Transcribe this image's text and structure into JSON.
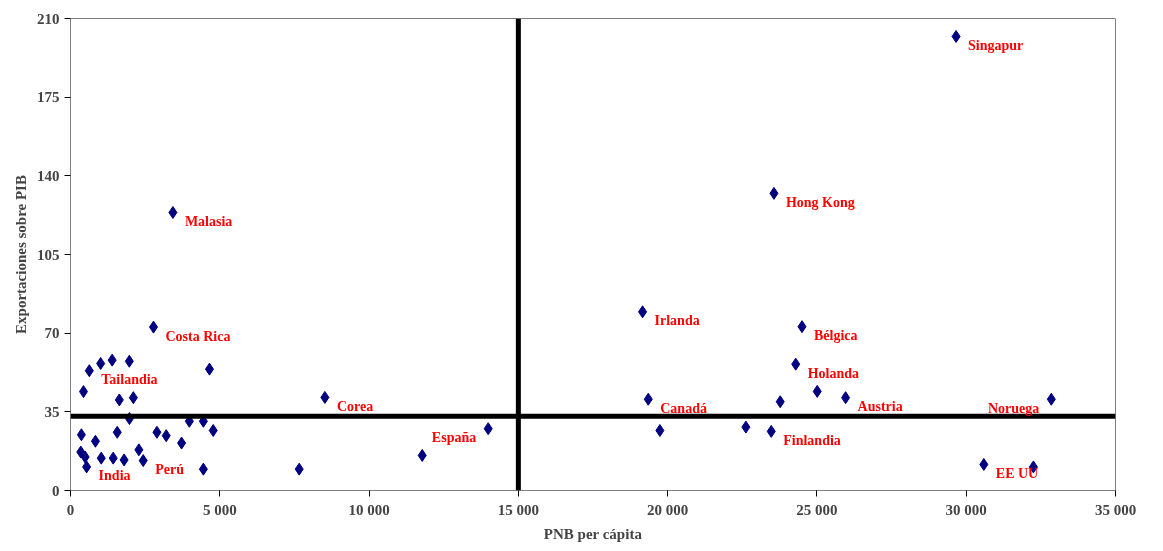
{
  "chart_data": {
    "type": "scatter",
    "xlabel": "PNB per cápita",
    "ylabel": "Exportaciones sobre PIB",
    "marker": "diamond",
    "grid": false,
    "xlim": [
      0,
      35000
    ],
    "ylim": [
      0,
      210
    ],
    "xticks": [
      0,
      {
        "value": 5000,
        "label": "5 000"
      },
      {
        "value": 10000,
        "label": "10 000"
      },
      {
        "value": 15000,
        "label": "15 000"
      },
      {
        "value": 20000,
        "label": "20 000"
      },
      {
        "value": 25000,
        "label": "25 000"
      },
      {
        "value": 30000,
        "label": "30 000"
      },
      {
        "value": 35000,
        "label": "35 000"
      }
    ],
    "yticks": [
      0,
      35,
      70,
      105,
      140,
      175,
      210
    ],
    "series": [
      {
        "color": "#000080",
        "x": [
          2780,
          630,
          1010,
          1395,
          1970,
          4655,
          435,
          1635,
          2105,
          8520,
          1975,
          3980,
          4450,
          365,
          835,
          1565,
          2895,
          3205,
          4780,
          3720,
          345,
          490,
          540,
          1030,
          1430,
          1795,
          2290,
          2435,
          4450,
          7660,
          11780,
          13990,
          19160,
          24500,
          24290,
          19350,
          23770,
          25010,
          25960,
          19740,
          22620,
          23470,
          32850,
          30590,
          32250,
          3430,
          23560,
          29660
        ],
        "values": [
          72.7,
          53.3,
          56.5,
          58,
          57.5,
          54,
          44,
          40.3,
          41.3,
          41.4,
          32,
          30.8,
          30.8,
          24.8,
          21.9,
          25.9,
          25.9,
          24.4,
          26.7,
          21.1,
          17.1,
          14.9,
          10.5,
          14.4,
          14.4,
          13.6,
          18.1,
          13.3,
          9.5,
          9.5,
          15.6,
          27.5,
          79.5,
          72.9,
          56.2,
          40.6,
          39.5,
          44.1,
          41.3,
          26.7,
          28.2,
          26.3,
          40.6,
          11.6,
          10.5,
          123.7,
          132.2,
          202
        ]
      }
    ],
    "ref_lines": [
      {
        "axis": "x",
        "value": 15000,
        "color": "#000000"
      },
      {
        "axis": "y",
        "value": 33,
        "color": "#000000"
      }
    ],
    "annotations": [
      {
        "text": "Malasia",
        "x": 3430,
        "y": 123.7
      },
      {
        "text": "Costa Rica",
        "x": 2780,
        "y": 72.7
      },
      {
        "text": "Tailandia",
        "x": 630,
        "y": 53.3
      },
      {
        "text": "Corea",
        "x": 8520,
        "y": 41.4
      },
      {
        "text": "Perú",
        "x": 2435,
        "y": 13.3
      },
      {
        "text": "India",
        "x": 540,
        "y": 10.5
      },
      {
        "text": "España",
        "x": 13990,
        "y": 27.5
      },
      {
        "text": "Singapur",
        "x": 29660,
        "y": 202
      },
      {
        "text": "Hong Kong",
        "x": 23560,
        "y": 132.2
      },
      {
        "text": "Irlanda",
        "x": 19160,
        "y": 79.5
      },
      {
        "text": "Bélgica",
        "x": 24500,
        "y": 72.9
      },
      {
        "text": "Holanda",
        "x": 24290,
        "y": 56.2
      },
      {
        "text": "Canadá",
        "x": 19350,
        "y": 40.6
      },
      {
        "text": "Austria",
        "x": 25960,
        "y": 41.3
      },
      {
        "text": "Finlandia",
        "x": 23470,
        "y": 26.3
      },
      {
        "text": "Noruega",
        "x": 32850,
        "y": 40.6
      },
      {
        "text": "EE UU",
        "x": 30590,
        "y": 11.6
      }
    ]
  }
}
